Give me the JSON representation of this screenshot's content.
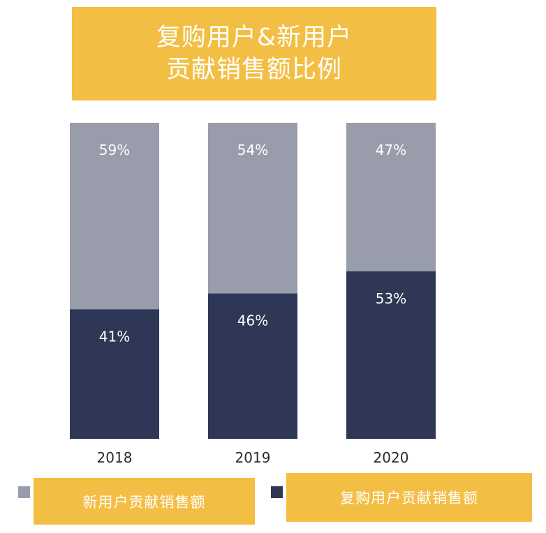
{
  "chart_data": {
    "type": "bar",
    "stacked": true,
    "title_lines": [
      "复购用户&新用户",
      "贡献销售额比例"
    ],
    "categories": [
      "2018",
      "2019",
      "2020"
    ],
    "series": [
      {
        "name": "复购用户贡献销售额",
        "values": [
          41,
          46,
          53
        ],
        "labels": [
          "41%",
          "46%",
          "53%"
        ],
        "color": "#2e3756"
      },
      {
        "name": "新用户贡献销售额",
        "values": [
          59,
          54,
          47
        ],
        "labels": [
          "59%",
          "54%",
          "47%"
        ],
        "color": "#989cab"
      }
    ],
    "ylim": [
      0,
      100
    ],
    "grid": false,
    "legend_position": "bottom"
  },
  "colors": {
    "title_bg": "#f3be44",
    "title_text": "#ffffff",
    "legend_bg": "#f3be44"
  }
}
